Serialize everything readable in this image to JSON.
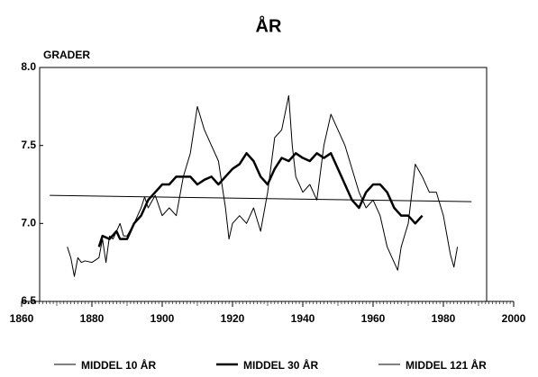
{
  "chart_data": {
    "type": "line",
    "title": "ÅR",
    "y_label": "GRADER",
    "xlim": [
      1860,
      2000
    ],
    "xticks": [
      1860,
      1880,
      1900,
      1920,
      1940,
      1960,
      1980,
      2000
    ],
    "ylim": [
      6.5,
      8
    ],
    "yticks": [
      6.5,
      {
        "value": 7,
        "label": "7.0"
      },
      7.5,
      {
        "value": 8,
        "label": "8.0"
      }
    ],
    "series": [
      {
        "name": "MIDDEL 10 ÅR",
        "color": "#000000",
        "width": 1,
        "x": [
          1873,
          1874,
          1875,
          1876,
          1877,
          1878,
          1880,
          1882,
          1883,
          1884,
          1885,
          1886,
          1888,
          1889,
          1890,
          1892,
          1894,
          1895,
          1896,
          1898,
          1900,
          1902,
          1904,
          1906,
          1908,
          1910,
          1912,
          1914,
          1916,
          1918,
          1919,
          1920,
          1922,
          1924,
          1926,
          1928,
          1930,
          1932,
          1934,
          1936,
          1937,
          1938,
          1940,
          1942,
          1944,
          1946,
          1948,
          1950,
          1952,
          1954,
          1956,
          1958,
          1960,
          1962,
          1964,
          1966,
          1967,
          1968,
          1970,
          1972,
          1974,
          1976,
          1978,
          1980,
          1982,
          1983,
          1984
        ],
        "values": [
          6.85,
          6.78,
          6.66,
          6.78,
          6.75,
          6.76,
          6.75,
          6.78,
          6.9,
          6.75,
          6.92,
          6.9,
          7.0,
          6.92,
          6.92,
          7.0,
          7.1,
          7.17,
          7.1,
          7.18,
          7.05,
          7.1,
          7.05,
          7.3,
          7.45,
          7.75,
          7.6,
          7.5,
          7.4,
          7.1,
          6.9,
          7.0,
          7.05,
          7.0,
          7.1,
          6.95,
          7.2,
          7.55,
          7.6,
          7.82,
          7.5,
          7.3,
          7.2,
          7.25,
          7.15,
          7.5,
          7.7,
          7.6,
          7.5,
          7.35,
          7.2,
          7.1,
          7.15,
          7.05,
          6.85,
          6.75,
          6.7,
          6.85,
          7.0,
          7.38,
          7.3,
          7.2,
          7.2,
          7.05,
          6.8,
          6.72,
          6.85
        ]
      },
      {
        "name": "MIDDEL 30 ÅR",
        "color": "#000000",
        "width": 2.5,
        "x": [
          1882,
          1883,
          1885,
          1887,
          1888,
          1890,
          1892,
          1894,
          1896,
          1898,
          1900,
          1902,
          1904,
          1906,
          1908,
          1910,
          1912,
          1914,
          1916,
          1918,
          1920,
          1922,
          1924,
          1926,
          1928,
          1930,
          1932,
          1934,
          1936,
          1938,
          1940,
          1942,
          1944,
          1946,
          1948,
          1950,
          1952,
          1954,
          1956,
          1958,
          1960,
          1962,
          1964,
          1966,
          1968,
          1970,
          1972,
          1974
        ],
        "values": [
          6.85,
          6.92,
          6.9,
          6.95,
          6.9,
          6.9,
          7.0,
          7.05,
          7.15,
          7.2,
          7.25,
          7.25,
          7.3,
          7.3,
          7.3,
          7.25,
          7.28,
          7.3,
          7.25,
          7.3,
          7.35,
          7.38,
          7.45,
          7.4,
          7.3,
          7.25,
          7.35,
          7.42,
          7.4,
          7.45,
          7.42,
          7.4,
          7.45,
          7.42,
          7.45,
          7.35,
          7.25,
          7.15,
          7.1,
          7.2,
          7.25,
          7.25,
          7.2,
          7.1,
          7.05,
          7.05,
          7.0,
          7.05
        ]
      },
      {
        "name": "MIDDEL 121 ÅR",
        "color": "#000000",
        "width": 1,
        "x": [
          1868,
          1988
        ],
        "values": [
          7.18,
          7.14
        ]
      }
    ]
  }
}
